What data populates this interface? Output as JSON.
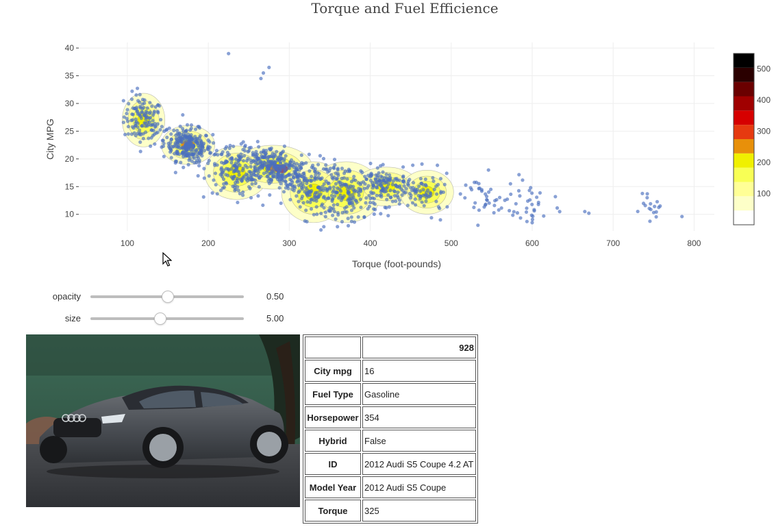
{
  "chart_data": {
    "type": "scatter",
    "title": "Torque and Fuel Efficience",
    "xlabel": "Torque (foot-pounds)",
    "ylabel": "City MPG",
    "xlim": [
      40,
      825
    ],
    "ylim": [
      7,
      41
    ],
    "xticks": [
      100,
      200,
      300,
      400,
      500,
      600,
      700,
      800
    ],
    "yticks": [
      10,
      15,
      20,
      25,
      30,
      35,
      40
    ],
    "grid": true,
    "marker_color": "#4a6fbf",
    "colorbar": {
      "ticks": [
        100,
        200,
        300,
        400,
        500
      ],
      "range": [
        0,
        550
      ],
      "colors": [
        "#ffffff",
        "#fdffc8",
        "#ffff96",
        "#f8ff55",
        "#f0f000",
        "#e8900a",
        "#e63a10",
        "#d60000",
        "#a00000",
        "#6a0000",
        "#2a0000",
        "#000000"
      ]
    },
    "clusters": [
      {
        "cx": 120,
        "cy": 27,
        "sx": 12,
        "sy": 2.2,
        "n": 120
      },
      {
        "cx": 175,
        "cy": 22.5,
        "sx": 15,
        "sy": 1.6,
        "n": 260
      },
      {
        "cx": 235,
        "cy": 17.5,
        "sx": 18,
        "sy": 2.2,
        "n": 140
      },
      {
        "cx": 280,
        "cy": 18.5,
        "sx": 22,
        "sy": 1.8,
        "n": 300
      },
      {
        "cx": 330,
        "cy": 14,
        "sx": 18,
        "sy": 2.5,
        "n": 120
      },
      {
        "cx": 370,
        "cy": 14,
        "sx": 20,
        "sy": 2.5,
        "n": 160
      },
      {
        "cx": 420,
        "cy": 15,
        "sx": 18,
        "sy": 1.6,
        "n": 140
      },
      {
        "cx": 470,
        "cy": 14,
        "sx": 15,
        "sy": 1.8,
        "n": 60
      },
      {
        "cx": 540,
        "cy": 12.5,
        "sx": 20,
        "sy": 2.2,
        "n": 40
      },
      {
        "cx": 600,
        "cy": 12,
        "sx": 15,
        "sy": 2.5,
        "n": 30
      },
      {
        "cx": 745,
        "cy": 11,
        "sx": 6,
        "sy": 1.0,
        "n": 15
      }
    ],
    "outliers": [
      [
        225,
        39
      ],
      [
        275,
        36.5
      ],
      [
        268,
        35.5
      ],
      [
        265,
        34.5
      ],
      [
        665,
        10.5
      ],
      [
        670,
        10.2
      ],
      [
        785,
        9.6
      ],
      [
        600,
        8.5
      ],
      [
        758,
        11.5
      ],
      [
        742,
        13
      ]
    ]
  },
  "controls": {
    "opacity": {
      "label": "opacity",
      "value": "0.50",
      "fraction": 0.5
    },
    "size": {
      "label": "size",
      "value": "5.00",
      "fraction": 0.45
    }
  },
  "details": {
    "header_value": "928",
    "rows": [
      {
        "key": "City mpg",
        "value": "16"
      },
      {
        "key": "Fuel Type",
        "value": "Gasoline"
      },
      {
        "key": "Horsepower",
        "value": "354"
      },
      {
        "key": "Hybrid",
        "value": "False"
      },
      {
        "key": "ID",
        "value": "2012 Audi S5 Coupe 4.2 AT"
      },
      {
        "key": "Model Year",
        "value": "2012 Audi S5 Coupe"
      },
      {
        "key": "Torque",
        "value": "325"
      }
    ]
  },
  "image": {
    "subject": "car-photo"
  }
}
